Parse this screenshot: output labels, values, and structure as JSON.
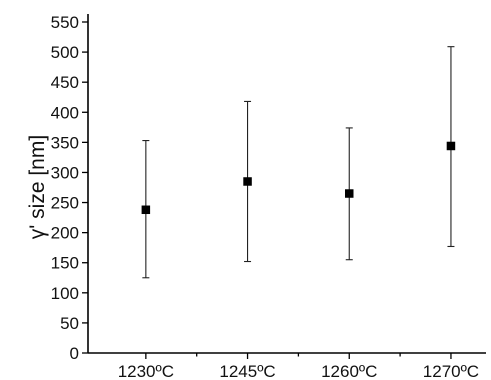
{
  "chart_data": {
    "type": "scatter",
    "title": "",
    "xlabel": "",
    "ylabel": "γ' size [nm]",
    "categories": [
      "1230ºC",
      "1245ºC",
      "1260ºC",
      "1270ºC"
    ],
    "values": [
      238,
      285,
      265,
      344
    ],
    "error_low": [
      125,
      152,
      155,
      177
    ],
    "error_high": [
      353,
      418,
      374,
      509
    ],
    "ylim": [
      0,
      550
    ],
    "yticks": [
      0,
      50,
      100,
      150,
      200,
      250,
      300,
      350,
      400,
      450,
      500,
      550
    ],
    "marker": "square",
    "color": "#000000",
    "grid": false,
    "legend": "none"
  }
}
